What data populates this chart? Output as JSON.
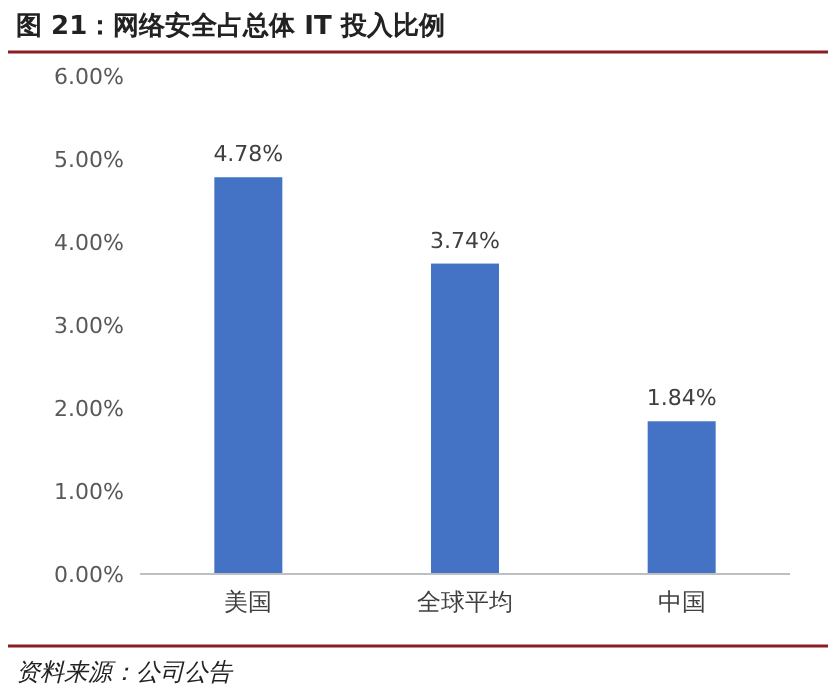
{
  "chart_data": {
    "type": "bar",
    "title": "图 21：网络安全占总体 IT 投入比例",
    "categories": [
      "美国",
      "全球平均",
      "中国"
    ],
    "values": [
      4.78,
      3.74,
      1.84
    ],
    "value_labels": [
      "4.78%",
      "3.74%",
      "1.84%"
    ],
    "color": "#4472c4",
    "ylim": [
      0,
      6
    ],
    "yticks": [
      {
        "value": 0,
        "label": "0.00%"
      },
      {
        "value": 1,
        "label": "1.00%"
      },
      {
        "value": 2,
        "label": "2.00%"
      },
      {
        "value": 3,
        "label": "3.00%"
      },
      {
        "value": 4,
        "label": "4.00%"
      },
      {
        "value": 5,
        "label": "5.00%"
      },
      {
        "value": 6,
        "label": "6.00%"
      }
    ],
    "annotations": [
      "资料来源：公司公告"
    ]
  }
}
